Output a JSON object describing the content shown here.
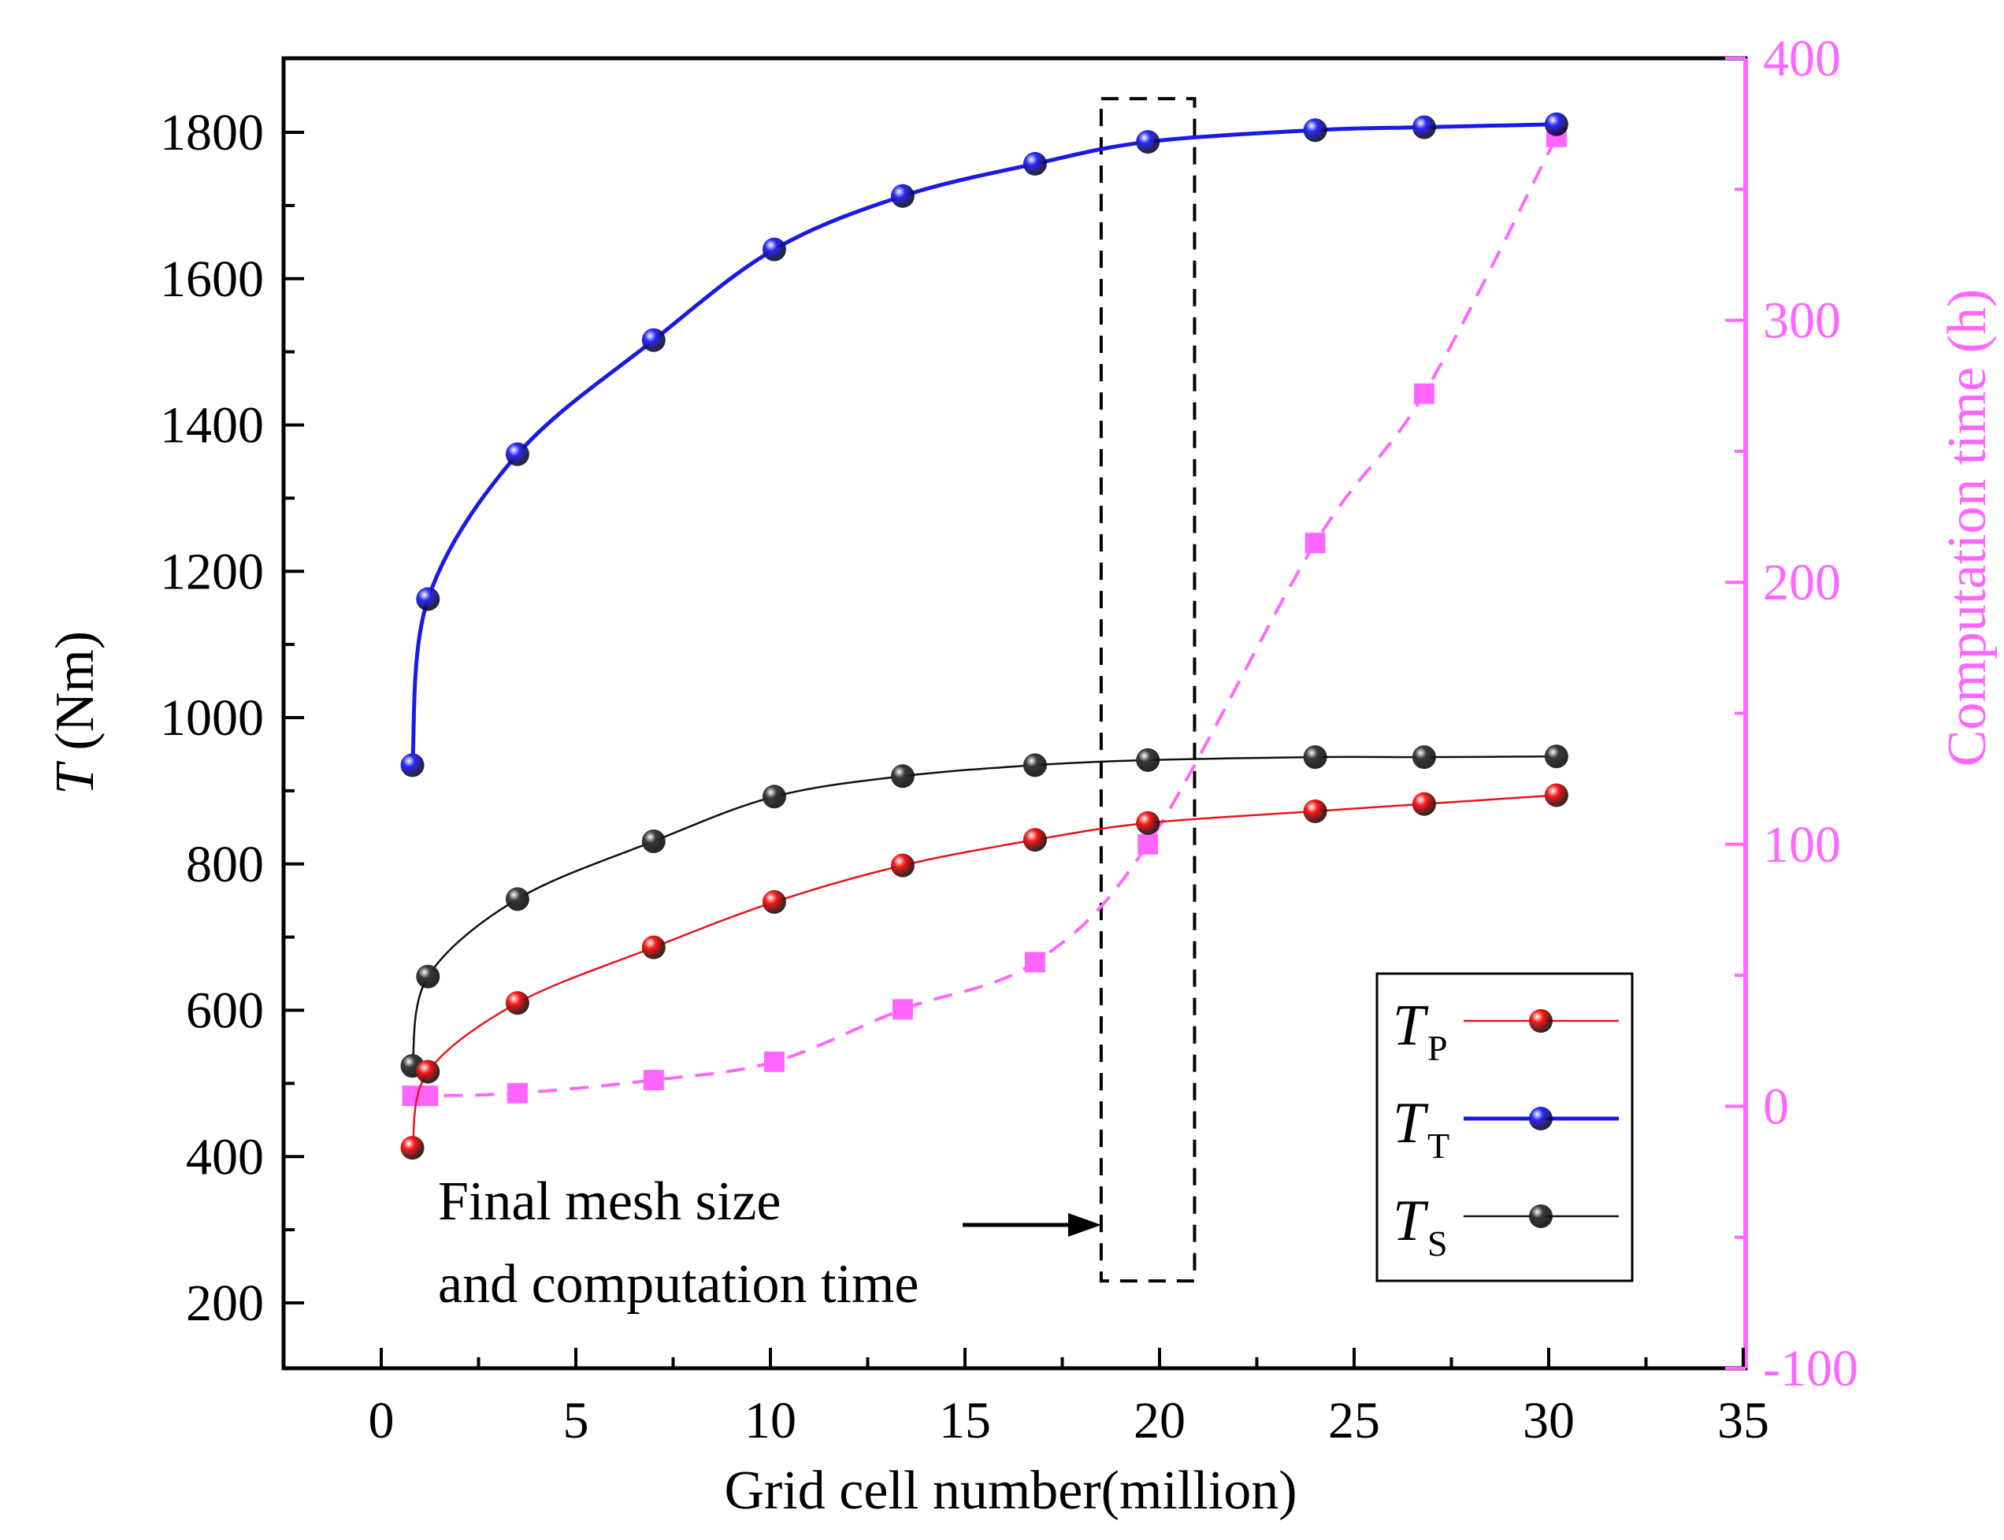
{
  "chart_data": {
    "type": "line",
    "x": [
      0.8,
      1.2,
      3.5,
      7.0,
      10.1,
      13.4,
      16.8,
      19.7,
      24.0,
      26.8,
      30.2
    ],
    "xlabel": "Grid cell number(million)",
    "xlim": [
      -2.5,
      35
    ],
    "xticks": [
      0,
      5,
      10,
      15,
      20,
      25,
      30,
      35
    ],
    "ylabel_italic": "T",
    "ylabel_rest": " (Nm)",
    "ylim": [
      130,
      1900
    ],
    "yticks": [
      200,
      400,
      600,
      800,
      1000,
      1200,
      1400,
      1600,
      1800
    ],
    "y2label": "Computation time (h)",
    "y2lim": [
      -100,
      400
    ],
    "y2ticks": [
      -100,
      0,
      100,
      200,
      300,
      400
    ],
    "series": [
      {
        "name": "T",
        "sub": "P",
        "axis": "left",
        "color": "#e8141c",
        "marker": "sphere",
        "line": "solid-thin",
        "values": [
          412,
          516,
          610,
          686,
          748,
          798,
          833,
          856,
          872,
          882,
          894
        ]
      },
      {
        "name": "T",
        "sub": "T",
        "axis": "left",
        "color": "#1a1ae6",
        "marker": "sphere",
        "line": "solid-thick",
        "values": [
          935,
          1162,
          1360,
          1516,
          1640,
          1713,
          1757,
          1787,
          1803,
          1807,
          1811
        ]
      },
      {
        "name": "T",
        "sub": "S",
        "axis": "left",
        "color": "#111111",
        "marker": "sphere",
        "line": "solid-thin",
        "values": [
          524,
          646,
          752,
          831,
          892,
          920,
          935,
          942,
          946,
          946,
          947
        ]
      },
      {
        "name": "Computation time",
        "axis": "right",
        "color": "#ff66ff",
        "marker": "square",
        "line": "dashed",
        "legend": false,
        "values": [
          4,
          4,
          5,
          10,
          17,
          37,
          55,
          100,
          215,
          272,
          370
        ]
      }
    ],
    "annotation": {
      "lines": [
        "Final mesh size",
        "and computation time"
      ],
      "box_x": [
        18.5,
        20.9
      ],
      "box_y": [
        230,
        1846
      ]
    }
  }
}
